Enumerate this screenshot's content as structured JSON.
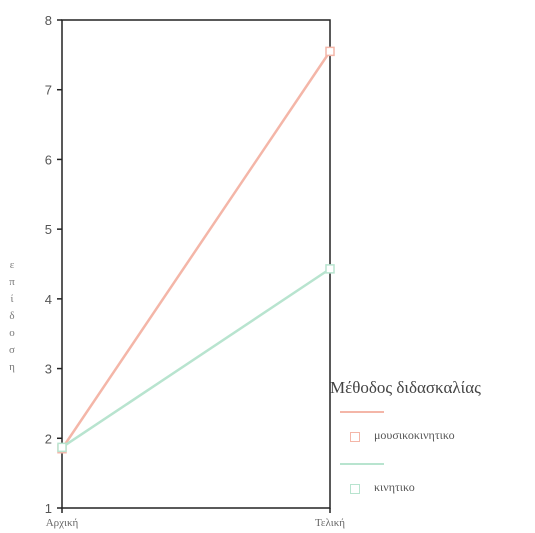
{
  "chart_data": {
    "type": "line",
    "categories": [
      "Αρχική",
      "Τελική"
    ],
    "series": [
      {
        "name": "μουσικοκινητικο",
        "values": [
          1.85,
          7.55
        ],
        "color": "#f4b6a8"
      },
      {
        "name": "κινητικο",
        "values": [
          1.87,
          4.43
        ],
        "color": "#b8e4cf"
      }
    ],
    "ylabel": "επίδοση",
    "ylim": [
      1,
      8
    ],
    "yticks": [
      1,
      2,
      3,
      4,
      5,
      6,
      7,
      8
    ],
    "legend_title": "Μέθοδος διδασκαλίας",
    "legend_position": "bottom-right",
    "grid": false
  }
}
